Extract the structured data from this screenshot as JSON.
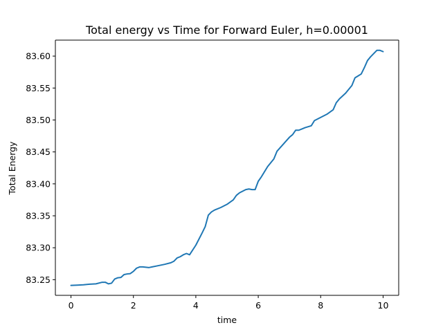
{
  "chart_data": {
    "type": "line",
    "title": "Total energy vs Time for Forward Euler, h=0.00001",
    "xlabel": "time",
    "ylabel": "Total Energy",
    "xlim": [
      -0.5,
      10.5
    ],
    "ylim": [
      83.2255,
      83.625
    ],
    "xticks": [
      0,
      2,
      4,
      6,
      8,
      10
    ],
    "yticks": [
      83.25,
      83.3,
      83.35,
      83.4,
      83.45,
      83.5,
      83.55,
      83.6
    ],
    "xtick_labels": [
      "0",
      "2",
      "4",
      "6",
      "8",
      "10"
    ],
    "ytick_labels": [
      "83.25",
      "83.30",
      "83.35",
      "83.40",
      "83.45",
      "83.50",
      "83.55",
      "83.60"
    ],
    "grid": false,
    "colors": {
      "line": "#1f77b4"
    },
    "series": [
      {
        "x": [
          0,
          0.2,
          0.4,
          0.6,
          0.8,
          1.0,
          1.1,
          1.2,
          1.3,
          1.4,
          1.5,
          1.6,
          1.7,
          1.8,
          1.9,
          2.0,
          2.1,
          2.2,
          2.3,
          2.4,
          2.5,
          2.6,
          2.8,
          3.0,
          3.2,
          3.3,
          3.4,
          3.5,
          3.6,
          3.7,
          3.8,
          4.0,
          4.2,
          4.3,
          4.4,
          4.5,
          4.6,
          4.8,
          5.0,
          5.2,
          5.3,
          5.4,
          5.6,
          5.7,
          5.8,
          5.9,
          6.0,
          6.1,
          6.3,
          6.5,
          6.6,
          6.8,
          7.0,
          7.1,
          7.2,
          7.3,
          7.4,
          7.5,
          7.7,
          7.8,
          8.0,
          8.2,
          8.4,
          8.5,
          8.6,
          8.8,
          9.0,
          9.1,
          9.2,
          9.3,
          9.4,
          9.5,
          9.6,
          9.7,
          9.8,
          9.9,
          10.0
        ],
        "y": [
          83.241,
          83.2415,
          83.242,
          83.243,
          83.2435,
          83.246,
          83.246,
          83.2435,
          83.2445,
          83.251,
          83.253,
          83.2535,
          83.258,
          83.259,
          83.2595,
          83.263,
          83.268,
          83.27,
          83.27,
          83.2695,
          83.269,
          83.27,
          83.272,
          83.274,
          83.2765,
          83.279,
          83.284,
          83.286,
          83.289,
          83.291,
          83.289,
          83.304,
          83.323,
          83.333,
          83.351,
          83.356,
          83.359,
          83.363,
          83.368,
          83.375,
          83.382,
          83.386,
          83.391,
          83.392,
          83.391,
          83.391,
          83.404,
          83.411,
          83.427,
          83.439,
          83.451,
          83.462,
          83.473,
          83.477,
          83.484,
          83.484,
          83.486,
          83.488,
          83.491,
          83.499,
          83.504,
          83.509,
          83.516,
          83.527,
          83.533,
          83.542,
          83.554,
          83.566,
          83.569,
          83.572,
          83.582,
          83.593,
          83.599,
          83.604,
          83.609,
          83.609,
          83.607
        ]
      }
    ]
  }
}
